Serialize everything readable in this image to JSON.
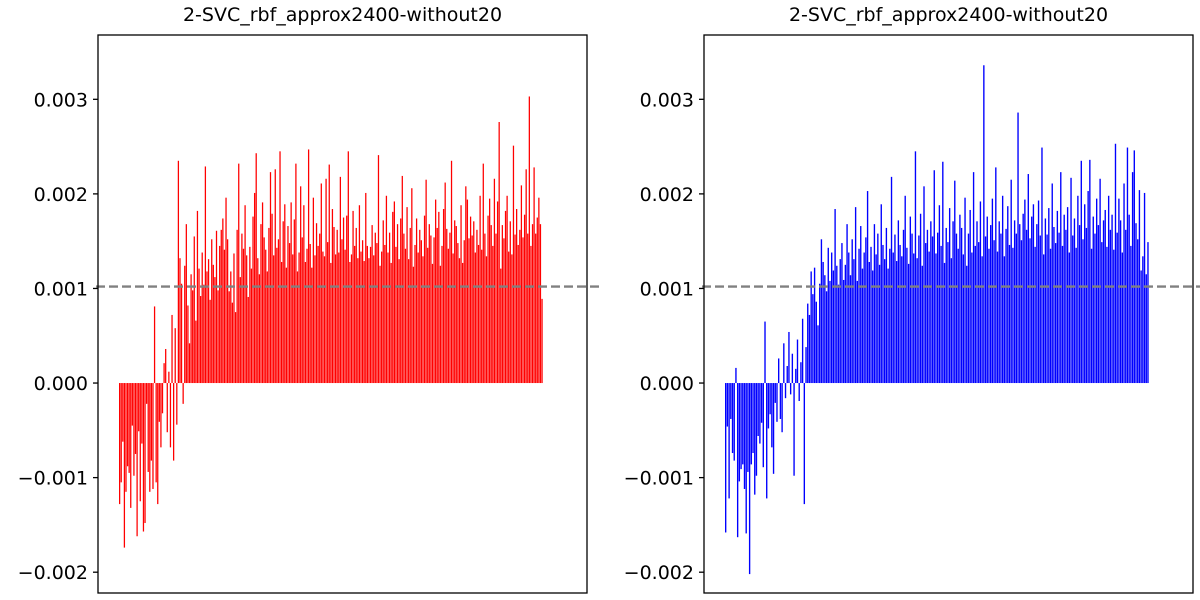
{
  "chart_data": [
    {
      "type": "bar",
      "title": "2-SVC_rbf_approx2400-without20",
      "xlabel": "",
      "ylabel": "",
      "color": "#ff0000",
      "reference_line": {
        "value": 0.00102,
        "style": "dashed",
        "color": "#808080"
      },
      "ylim": [
        -0.00222,
        0.00368
      ],
      "yticks": [
        {
          "value": -0.002,
          "label": "−0.002"
        },
        {
          "value": -0.001,
          "label": "−0.001"
        },
        {
          "value": 0.0,
          "label": "0.000"
        },
        {
          "value": 0.001,
          "label": "0.001"
        },
        {
          "value": 0.002,
          "label": "0.002"
        },
        {
          "value": 0.003,
          "label": "0.003"
        }
      ],
      "xticks": "none",
      "values": [
        -0.00128,
        -0.00105,
        -0.00062,
        -0.00174,
        -0.00115,
        -0.00088,
        -0.00095,
        -0.00132,
        -0.00045,
        -0.00098,
        -0.00075,
        -0.00162,
        -0.00051,
        -0.00125,
        -0.00064,
        -0.00157,
        -0.00148,
        -0.00022,
        -0.00094,
        -0.00115,
        -0.00082,
        -0.00112,
        0.00081,
        -0.00105,
        -0.00128,
        -0.00041,
        -0.00068,
        -0.00032,
        0.00021,
        0.00036,
        -0.00052,
        0.00012,
        -0.00068,
        0.00072,
        -0.00082,
        0.00058,
        -0.00044,
        0.00235,
        0.00132,
        0.00105,
        -0.00022,
        0.00124,
        0.00168,
        0.00082,
        0.00042,
        0.00115,
        0.00098,
        0.00155,
        0.00066,
        0.00182,
        0.00121,
        0.00092,
        0.00138,
        0.00104,
        0.00229,
        0.00118,
        0.00131,
        0.00088,
        0.00152,
        0.00125,
        0.00112,
        0.00161,
        0.00098,
        0.00145,
        0.00162,
        0.00174,
        0.00141,
        0.00196,
        0.00152,
        0.00097,
        0.00118,
        0.00085,
        0.00137,
        0.00075,
        0.00162,
        0.00232,
        0.00112,
        0.00158,
        0.00142,
        0.00188,
        0.00135,
        0.00091,
        0.00144,
        0.00121,
        0.00176,
        0.00201,
        0.00243,
        0.00132,
        0.00115,
        0.00168,
        0.00191,
        0.00154,
        0.00141,
        0.00118,
        0.00164,
        0.00223,
        0.00179,
        0.00135,
        0.00226,
        0.00143,
        0.00152,
        0.00245,
        0.00128,
        0.00171,
        0.00189,
        0.00122,
        0.00166,
        0.00148,
        0.00191,
        0.00136,
        0.00173,
        0.00232,
        0.00118,
        0.00138,
        0.00208,
        0.00154,
        0.00188,
        0.00128,
        0.00142,
        0.00247,
        0.00147,
        0.00122,
        0.00196,
        0.00135,
        0.00169,
        0.00145,
        0.00158,
        0.00211,
        0.00139,
        0.00134,
        0.00216,
        0.00149,
        0.00231,
        0.00127,
        0.00184,
        0.00165,
        0.00136,
        0.00162,
        0.00138,
        0.00218,
        0.00152,
        0.00175,
        0.00141,
        0.00177,
        0.00245,
        0.00128,
        0.00136,
        0.00182,
        0.00145,
        0.00164,
        0.00132,
        0.00188,
        0.00139,
        0.00151,
        0.00129,
        0.00201,
        0.00145,
        0.00132,
        0.00144,
        0.00167,
        0.00135,
        0.00159,
        0.00148,
        0.00241,
        0.00124,
        0.00139,
        0.00172,
        0.00146,
        0.00198,
        0.00138,
        0.00159,
        0.00127,
        0.00181,
        0.00192,
        0.00144,
        0.00168,
        0.00131,
        0.00174,
        0.00219,
        0.00158,
        0.00142,
        0.00186,
        0.00131,
        0.00164,
        0.00206,
        0.00123,
        0.00146,
        0.00174,
        0.00138,
        0.00162,
        0.00151,
        0.00134,
        0.00177,
        0.00215,
        0.00143,
        0.00168,
        0.00156,
        0.00126,
        0.00154,
        0.00194,
        0.00164,
        0.00181,
        0.00124,
        0.00145,
        0.00184,
        0.00212,
        0.00163,
        0.00142,
        0.00159,
        0.00235,
        0.00137,
        0.00172,
        0.00166,
        0.00148,
        0.00132,
        0.00188,
        0.00127,
        0.00151,
        0.00208,
        0.00194,
        0.00153,
        0.00176,
        0.00156,
        0.00171,
        0.00138,
        0.00162,
        0.00146,
        0.00198,
        0.00141,
        0.00232,
        0.00158,
        0.00134,
        0.00177,
        0.00195,
        0.00167,
        0.00145,
        0.00216,
        0.00158,
        0.00192,
        0.00276,
        0.00121,
        0.00167,
        0.00153,
        0.00182,
        0.00198,
        0.00139,
        0.00171,
        0.00136,
        0.00251,
        0.00157,
        0.00184,
        0.00146,
        0.00162,
        0.00209,
        0.00154,
        0.00178,
        0.00226,
        0.00158,
        0.00303,
        0.00145,
        0.00168,
        0.00228,
        0.00158,
        0.00175,
        0.00196,
        0.00168,
        0.00089
      ]
    },
    {
      "type": "bar",
      "title": "2-SVC_rbf_approx2400-without20",
      "xlabel": "",
      "ylabel": "",
      "color": "#0000ff",
      "reference_line": {
        "value": 0.00102,
        "style": "dashed",
        "color": "#808080"
      },
      "ylim": [
        -0.00222,
        0.00368
      ],
      "yticks": [
        {
          "value": -0.002,
          "label": "−0.002"
        },
        {
          "value": -0.001,
          "label": "−0.001"
        },
        {
          "value": 0.0,
          "label": "0.000"
        },
        {
          "value": 0.001,
          "label": "0.001"
        },
        {
          "value": 0.002,
          "label": "0.002"
        },
        {
          "value": 0.003,
          "label": "0.003"
        }
      ],
      "xticks": "none",
      "values": [
        -0.00158,
        -0.00046,
        -0.00122,
        -0.00038,
        -0.00074,
        -0.00082,
        0.00016,
        -0.00163,
        -0.00104,
        -0.00091,
        -0.00086,
        -0.00112,
        -0.00159,
        -0.00094,
        -0.00202,
        -0.00086,
        -0.00074,
        -0.00118,
        -0.00098,
        -0.00056,
        -0.00064,
        -0.00042,
        -0.00089,
        0.00065,
        -0.00122,
        -0.00048,
        -0.00033,
        -0.00068,
        -0.00096,
        -0.00021,
        -0.00041,
        0.00026,
        -0.00038,
        -0.00052,
        0.00042,
        -0.00016,
        0.00018,
        0.00054,
        -0.00012,
        0.00031,
        -0.00098,
        0.00015,
        0.00046,
        -0.00019,
        0.00022,
        0.00068,
        -0.00128,
        0.00038,
        0.00084,
        0.00072,
        0.00118,
        0.00094,
        0.00122,
        0.00086,
        0.00061,
        0.00105,
        0.00152,
        0.00128,
        0.00114,
        0.00097,
        0.00143,
        0.00108,
        0.00138,
        0.00119,
        0.00184,
        0.00124,
        0.00104,
        0.00131,
        0.00148,
        0.00109,
        0.00125,
        0.00168,
        0.00138,
        0.00114,
        0.00152,
        0.00131,
        0.00186,
        0.00108,
        0.00142,
        0.00166,
        0.00121,
        0.00138,
        0.00154,
        0.00203,
        0.00128,
        0.00144,
        0.00119,
        0.00168,
        0.00136,
        0.00158,
        0.00125,
        0.00189,
        0.00146,
        0.00131,
        0.00164,
        0.00121,
        0.00142,
        0.00218,
        0.00138,
        0.00157,
        0.00129,
        0.00172,
        0.00146,
        0.00134,
        0.00162,
        0.00198,
        0.00143,
        0.00126,
        0.00176,
        0.00158,
        0.00137,
        0.00245,
        0.00132,
        0.00156,
        0.00179,
        0.00124,
        0.00208,
        0.00148,
        0.00162,
        0.00139,
        0.00171,
        0.00155,
        0.00225,
        0.00137,
        0.00159,
        0.00188,
        0.00145,
        0.00234,
        0.00127,
        0.00164,
        0.00149,
        0.00185,
        0.00132,
        0.00171,
        0.00214,
        0.00158,
        0.00142,
        0.00178,
        0.00164,
        0.00136,
        0.00196,
        0.00124,
        0.00158,
        0.00183,
        0.00138,
        0.00223,
        0.00145,
        0.00171,
        0.00149,
        0.00192,
        0.00134,
        0.00336,
        0.00155,
        0.00176,
        0.00142,
        0.00167,
        0.00195,
        0.00151,
        0.00228,
        0.00139,
        0.00171,
        0.00158,
        0.00198,
        0.00134,
        0.00163,
        0.00187,
        0.00146,
        0.00215,
        0.00143,
        0.00172,
        0.00158,
        0.00286,
        0.00168,
        0.00151,
        0.00179,
        0.00194,
        0.00162,
        0.00221,
        0.00153,
        0.00176,
        0.00189,
        0.00144,
        0.00168,
        0.00193,
        0.00156,
        0.00249,
        0.00136,
        0.00174,
        0.00157,
        0.00185,
        0.00142,
        0.00211,
        0.00165,
        0.00148,
        0.00182,
        0.00159,
        0.00223,
        0.00145,
        0.00178,
        0.00162,
        0.00186,
        0.00138,
        0.00217,
        0.00156,
        0.00174,
        0.00143,
        0.00198,
        0.00167,
        0.00235,
        0.00152,
        0.00189,
        0.00164,
        0.00203,
        0.00236,
        0.00142,
        0.00176,
        0.00158,
        0.00195,
        0.00167,
        0.00216,
        0.00149,
        0.00172,
        0.00183,
        0.00144,
        0.00198,
        0.00162,
        0.00178,
        0.00141,
        0.00253,
        0.00159,
        0.00195,
        0.00172,
        0.00138,
        0.00211,
        0.00162,
        0.00249,
        0.00178,
        0.00145,
        0.00223,
        0.00246,
        0.00169,
        0.00152,
        0.00204,
        0.00119,
        0.00134,
        0.00201,
        0.00115,
        0.00149
      ]
    }
  ]
}
